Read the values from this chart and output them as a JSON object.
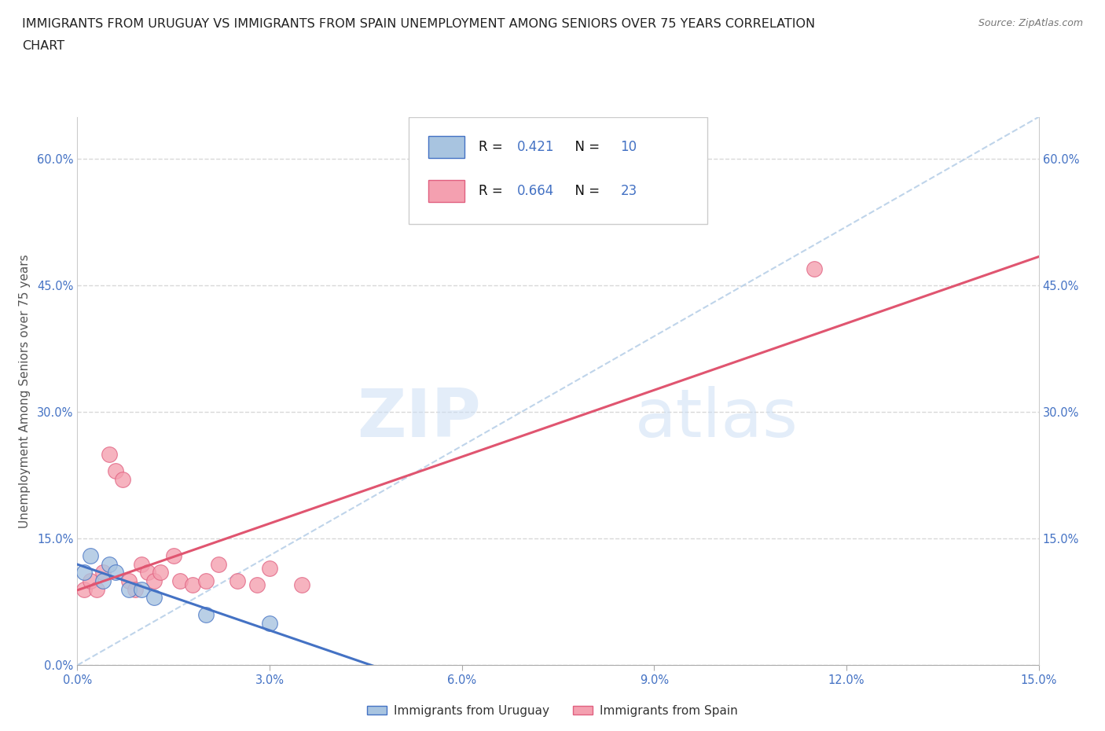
{
  "title_line1": "IMMIGRANTS FROM URUGUAY VS IMMIGRANTS FROM SPAIN UNEMPLOYMENT AMONG SENIORS OVER 75 YEARS CORRELATION",
  "title_line2": "CHART",
  "source_text": "Source: ZipAtlas.com",
  "ylabel": "Unemployment Among Seniors over 75 years",
  "xlim": [
    0.0,
    0.15
  ],
  "ylim": [
    0.0,
    0.65
  ],
  "xticks": [
    0.0,
    0.03,
    0.06,
    0.09,
    0.12,
    0.15
  ],
  "yticks": [
    0.0,
    0.15,
    0.3,
    0.45,
    0.6
  ],
  "xticklabels": [
    "0.0%",
    "3.0%",
    "6.0%",
    "9.0%",
    "12.0%",
    "15.0%"
  ],
  "yticklabels": [
    "0.0%",
    "15.0%",
    "30.0%",
    "45.0%",
    "60.0%"
  ],
  "right_yticks": [
    0.15,
    0.3,
    0.45,
    0.6
  ],
  "right_yticklabels": [
    "15.0%",
    "30.0%",
    "45.0%",
    "60.0%"
  ],
  "uruguay_color": "#a8c4e0",
  "spain_color": "#f4a0b0",
  "uruguay_edge_color": "#4472c4",
  "spain_edge_color": "#e06080",
  "uruguay_line_color": "#4472c4",
  "spain_line_color": "#e05570",
  "diagonal_color": "#b8d0e8",
  "R_uruguay": "0.421",
  "N_uruguay": "10",
  "R_spain": "0.664",
  "N_spain": "23",
  "legend_label_uruguay": "Immigrants from Uruguay",
  "legend_label_spain": "Immigrants from Spain",
  "uruguay_x": [
    0.001,
    0.002,
    0.004,
    0.005,
    0.006,
    0.008,
    0.01,
    0.012,
    0.02,
    0.03
  ],
  "uruguay_y": [
    0.11,
    0.13,
    0.1,
    0.12,
    0.11,
    0.09,
    0.09,
    0.08,
    0.06,
    0.05
  ],
  "spain_x": [
    0.001,
    0.002,
    0.003,
    0.004,
    0.005,
    0.006,
    0.007,
    0.008,
    0.009,
    0.01,
    0.011,
    0.012,
    0.013,
    0.015,
    0.016,
    0.018,
    0.02,
    0.022,
    0.025,
    0.028,
    0.03,
    0.035,
    0.115
  ],
  "spain_y": [
    0.09,
    0.1,
    0.09,
    0.11,
    0.25,
    0.23,
    0.22,
    0.1,
    0.09,
    0.12,
    0.11,
    0.1,
    0.11,
    0.13,
    0.1,
    0.095,
    0.1,
    0.12,
    0.1,
    0.095,
    0.115,
    0.095,
    0.47
  ],
  "watermark_zip": "ZIP",
  "watermark_atlas": "atlas",
  "background_color": "#ffffff",
  "grid_color": "#d8d8d8",
  "title_fontsize": 11.5,
  "axis_label_fontsize": 11,
  "tick_fontsize": 10.5,
  "legend_fontsize": 12
}
